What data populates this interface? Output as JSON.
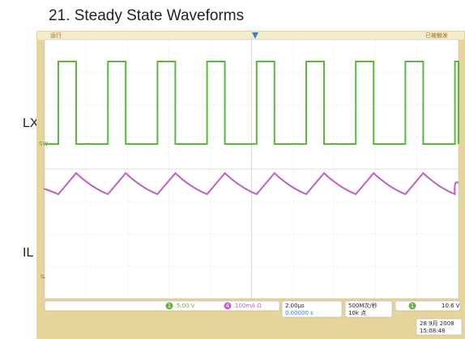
{
  "title": "21. Steady State Waveforms",
  "labels": {
    "lx": "LX",
    "il": "IL"
  },
  "scope": {
    "status": "运行",
    "trigger_state": "已被触发",
    "ch1_marker": "SW",
    "ch4_marker": "IL",
    "ch1_badge": "1",
    "ch4_badge": "4",
    "trig_badge": "1",
    "ch1_scale": "5.00 V",
    "ch4_scale": "100mA Ω",
    "timebase": "2.00μs",
    "delay": "0.00000 s",
    "sample_rate": "500M次/秒",
    "points": "10k 点",
    "trigger_level": "10.6 V",
    "date": "28 9月 2008",
    "time": "15:08:48"
  }
}
